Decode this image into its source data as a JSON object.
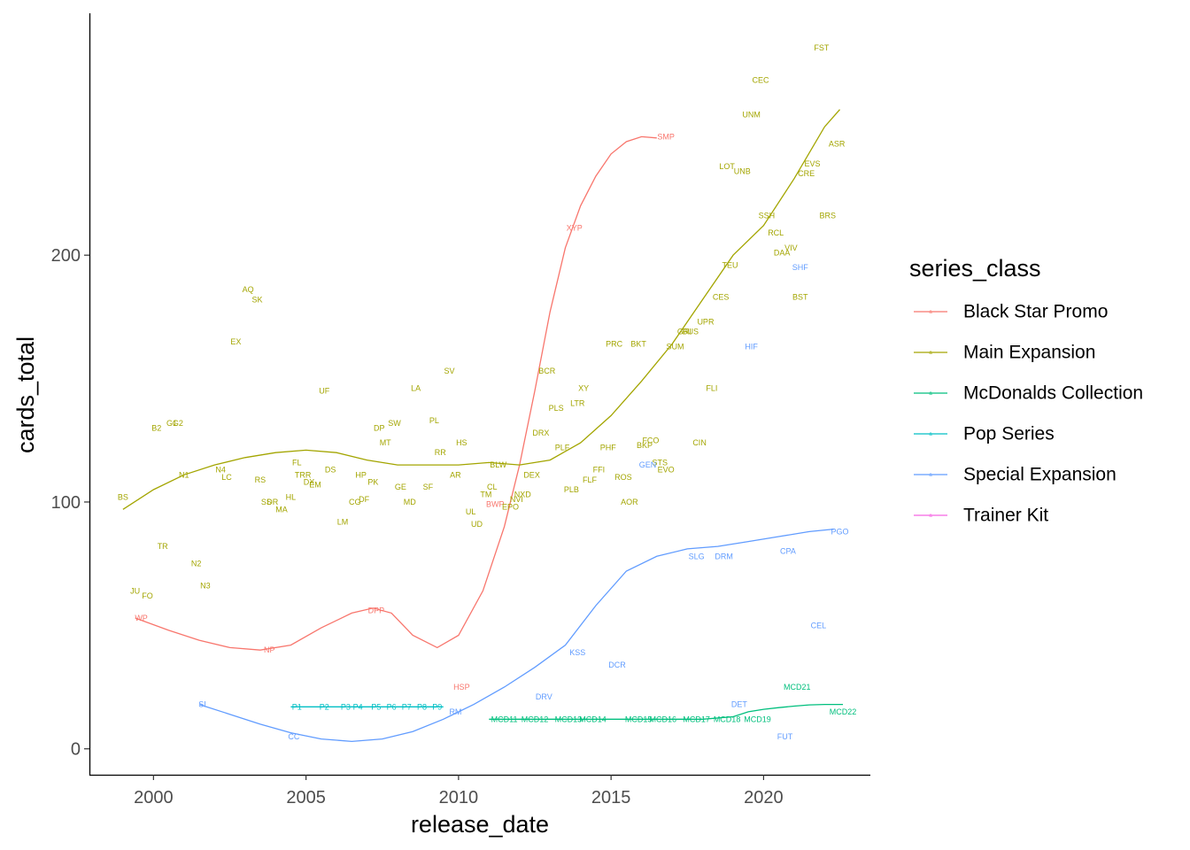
{
  "chart_data": {
    "type": "scatter",
    "xlabel": "release_date",
    "ylabel": "cards_total",
    "xlim": [
      1997.9,
      2023.5
    ],
    "ylim": [
      -10.5,
      298
    ],
    "xticks": [
      2000,
      2005,
      2010,
      2015,
      2020
    ],
    "yticks": [
      0,
      100,
      200
    ],
    "grid": false,
    "legend": {
      "title": "series_class",
      "position": "right"
    },
    "series": [
      {
        "name": "Black Star Promo",
        "color": "#F8766D",
        "points": [
          {
            "label": "WP",
            "x": 1999.6,
            "y": 53
          },
          {
            "label": "NP",
            "x": 2003.8,
            "y": 40
          },
          {
            "label": "DPP",
            "x": 2007.3,
            "y": 56
          },
          {
            "label": "HSP",
            "x": 2010.1,
            "y": 25
          },
          {
            "label": "BWP",
            "x": 2011.2,
            "y": 99
          },
          {
            "label": "XYP",
            "x": 2013.8,
            "y": 211
          },
          {
            "label": "SMP",
            "x": 2016.8,
            "y": 248
          }
        ],
        "trend": [
          [
            1999.4,
            53
          ],
          [
            2000.5,
            48
          ],
          [
            2001.5,
            44
          ],
          [
            2002.5,
            41
          ],
          [
            2003.5,
            40
          ],
          [
            2004.5,
            42
          ],
          [
            2005.5,
            49
          ],
          [
            2006.5,
            55
          ],
          [
            2007.2,
            57
          ],
          [
            2007.8,
            55
          ],
          [
            2008.5,
            46
          ],
          [
            2009.3,
            41
          ],
          [
            2010,
            46
          ],
          [
            2010.8,
            64
          ],
          [
            2011.5,
            90
          ],
          [
            2012,
            115
          ],
          [
            2012.5,
            145
          ],
          [
            2013,
            177
          ],
          [
            2013.5,
            203
          ],
          [
            2014,
            220
          ],
          [
            2014.5,
            232
          ],
          [
            2015,
            241
          ],
          [
            2015.5,
            246
          ],
          [
            2016,
            248
          ],
          [
            2016.5,
            247.5
          ]
        ]
      },
      {
        "name": "Main Expansion",
        "color": "#A3A500",
        "points": [
          {
            "label": "BS",
            "x": 1999.0,
            "y": 102
          },
          {
            "label": "JU",
            "x": 1999.4,
            "y": 64
          },
          {
            "label": "FO",
            "x": 1999.8,
            "y": 62
          },
          {
            "label": "B2",
            "x": 2000.1,
            "y": 130
          },
          {
            "label": "TR",
            "x": 2000.3,
            "y": 82
          },
          {
            "label": "G1",
            "x": 2000.6,
            "y": 132
          },
          {
            "label": "G2",
            "x": 2000.8,
            "y": 132
          },
          {
            "label": "N1",
            "x": 2001.0,
            "y": 111
          },
          {
            "label": "N2",
            "x": 2001.4,
            "y": 75
          },
          {
            "label": "N3",
            "x": 2001.7,
            "y": 66
          },
          {
            "label": "N4",
            "x": 2002.2,
            "y": 113
          },
          {
            "label": "LC",
            "x": 2002.4,
            "y": 110
          },
          {
            "label": "EX",
            "x": 2002.7,
            "y": 165
          },
          {
            "label": "AQ",
            "x": 2003.1,
            "y": 186
          },
          {
            "label": "SK",
            "x": 2003.4,
            "y": 182
          },
          {
            "label": "RS",
            "x": 2003.5,
            "y": 109
          },
          {
            "label": "SS",
            "x": 2003.7,
            "y": 100
          },
          {
            "label": "DR",
            "x": 2003.9,
            "y": 100
          },
          {
            "label": "MA",
            "x": 2004.2,
            "y": 97
          },
          {
            "label": "HL",
            "x": 2004.5,
            "y": 102
          },
          {
            "label": "FL",
            "x": 2004.7,
            "y": 116
          },
          {
            "label": "TRR",
            "x": 2004.9,
            "y": 111
          },
          {
            "label": "DX",
            "x": 2005.1,
            "y": 108
          },
          {
            "label": "EM",
            "x": 2005.3,
            "y": 107
          },
          {
            "label": "UF",
            "x": 2005.6,
            "y": 145
          },
          {
            "label": "DS",
            "x": 2005.8,
            "y": 113
          },
          {
            "label": "LM",
            "x": 2006.2,
            "y": 92
          },
          {
            "label": "CG",
            "x": 2006.6,
            "y": 100
          },
          {
            "label": "HP",
            "x": 2006.8,
            "y": 111
          },
          {
            "label": "DF",
            "x": 2006.9,
            "y": 101
          },
          {
            "label": "PK",
            "x": 2007.2,
            "y": 108
          },
          {
            "label": "DP",
            "x": 2007.4,
            "y": 130
          },
          {
            "label": "MT",
            "x": 2007.6,
            "y": 124
          },
          {
            "label": "SW",
            "x": 2007.9,
            "y": 132
          },
          {
            "label": "GE",
            "x": 2008.1,
            "y": 106
          },
          {
            "label": "MD",
            "x": 2008.4,
            "y": 100
          },
          {
            "label": "LA",
            "x": 2008.6,
            "y": 146
          },
          {
            "label": "SF",
            "x": 2009.0,
            "y": 106
          },
          {
            "label": "PL",
            "x": 2009.2,
            "y": 133
          },
          {
            "label": "RR",
            "x": 2009.4,
            "y": 120
          },
          {
            "label": "SV",
            "x": 2009.7,
            "y": 153
          },
          {
            "label": "AR",
            "x": 2009.9,
            "y": 111
          },
          {
            "label": "HS",
            "x": 2010.1,
            "y": 124
          },
          {
            "label": "UL",
            "x": 2010.4,
            "y": 96
          },
          {
            "label": "UD",
            "x": 2010.6,
            "y": 91
          },
          {
            "label": "TM",
            "x": 2010.9,
            "y": 103
          },
          {
            "label": "CL",
            "x": 2011.1,
            "y": 106
          },
          {
            "label": "BLW",
            "x": 2011.3,
            "y": 115
          },
          {
            "label": "EPO",
            "x": 2011.7,
            "y": 98
          },
          {
            "label": "NVI",
            "x": 2011.9,
            "y": 101
          },
          {
            "label": "NXD",
            "x": 2012.1,
            "y": 103
          },
          {
            "label": "DEX",
            "x": 2012.4,
            "y": 111
          },
          {
            "label": "DRX",
            "x": 2012.7,
            "y": 128
          },
          {
            "label": "BCR",
            "x": 2012.9,
            "y": 153
          },
          {
            "label": "PLS",
            "x": 2013.2,
            "y": 138
          },
          {
            "label": "PLF",
            "x": 2013.4,
            "y": 122
          },
          {
            "label": "PLB",
            "x": 2013.7,
            "y": 105
          },
          {
            "label": "LTR",
            "x": 2013.9,
            "y": 140
          },
          {
            "label": "XY",
            "x": 2014.1,
            "y": 146
          },
          {
            "label": "FLF",
            "x": 2014.3,
            "y": 109
          },
          {
            "label": "FFI",
            "x": 2014.6,
            "y": 113
          },
          {
            "label": "PHF",
            "x": 2014.9,
            "y": 122
          },
          {
            "label": "PRC",
            "x": 2015.1,
            "y": 164
          },
          {
            "label": "ROS",
            "x": 2015.4,
            "y": 110
          },
          {
            "label": "AOR",
            "x": 2015.6,
            "y": 100
          },
          {
            "label": "BKT",
            "x": 2015.9,
            "y": 164
          },
          {
            "label": "BKP",
            "x": 2016.1,
            "y": 123
          },
          {
            "label": "FCO",
            "x": 2016.3,
            "y": 125
          },
          {
            "label": "STS",
            "x": 2016.6,
            "y": 116
          },
          {
            "label": "EVO",
            "x": 2016.8,
            "y": 113
          },
          {
            "label": "SUM",
            "x": 2017.1,
            "y": 163
          },
          {
            "label": "GRI",
            "x": 2017.4,
            "y": 169
          },
          {
            "label": "BUS",
            "x": 2017.6,
            "y": 169
          },
          {
            "label": "CIN",
            "x": 2017.9,
            "y": 124
          },
          {
            "label": "UPR",
            "x": 2018.1,
            "y": 173
          },
          {
            "label": "FLI",
            "x": 2018.3,
            "y": 146
          },
          {
            "label": "CES",
            "x": 2018.6,
            "y": 183
          },
          {
            "label": "LOT",
            "x": 2018.8,
            "y": 236
          },
          {
            "label": "TEU",
            "x": 2018.9,
            "y": 196
          },
          {
            "label": "UNB",
            "x": 2019.3,
            "y": 234
          },
          {
            "label": "UNM",
            "x": 2019.6,
            "y": 257
          },
          {
            "label": "CEC",
            "x": 2019.9,
            "y": 271
          },
          {
            "label": "SSH",
            "x": 2020.1,
            "y": 216
          },
          {
            "label": "RCL",
            "x": 2020.4,
            "y": 209
          },
          {
            "label": "DAA",
            "x": 2020.6,
            "y": 201
          },
          {
            "label": "VIV",
            "x": 2020.9,
            "y": 203
          },
          {
            "label": "BST",
            "x": 2021.2,
            "y": 183
          },
          {
            "label": "CRE",
            "x": 2021.4,
            "y": 233
          },
          {
            "label": "EVS",
            "x": 2021.6,
            "y": 237
          },
          {
            "label": "FST",
            "x": 2021.9,
            "y": 284
          },
          {
            "label": "BRS",
            "x": 2022.1,
            "y": 216
          },
          {
            "label": "ASR",
            "x": 2022.4,
            "y": 245
          }
        ],
        "trend": [
          [
            1999,
            97
          ],
          [
            2000,
            105
          ],
          [
            2001,
            111
          ],
          [
            2002,
            115
          ],
          [
            2003,
            118
          ],
          [
            2004,
            120
          ],
          [
            2005,
            121
          ],
          [
            2006,
            120
          ],
          [
            2007,
            117
          ],
          [
            2008,
            115
          ],
          [
            2009,
            115
          ],
          [
            2010,
            115
          ],
          [
            2011,
            116
          ],
          [
            2012,
            115
          ],
          [
            2013,
            117
          ],
          [
            2014,
            124
          ],
          [
            2015,
            135
          ],
          [
            2016,
            149
          ],
          [
            2017,
            164
          ],
          [
            2018,
            182
          ],
          [
            2019,
            200
          ],
          [
            2020,
            212
          ],
          [
            2021,
            231
          ],
          [
            2022,
            252
          ],
          [
            2022.5,
            259
          ]
        ]
      },
      {
        "name": "McDonalds Collection",
        "color": "#00BF7D",
        "points": [
          {
            "label": "MCD11",
            "x": 2011.5,
            "y": 12
          },
          {
            "label": "MCD12",
            "x": 2012.5,
            "y": 12
          },
          {
            "label": "MCD13",
            "x": 2013.6,
            "y": 12
          },
          {
            "label": "MCD14",
            "x": 2014.4,
            "y": 12
          },
          {
            "label": "MCD15",
            "x": 2015.9,
            "y": 12
          },
          {
            "label": "MCD16",
            "x": 2016.7,
            "y": 12
          },
          {
            "label": "MCD17",
            "x": 2017.8,
            "y": 12
          },
          {
            "label": "MCD18",
            "x": 2018.8,
            "y": 12
          },
          {
            "label": "MCD19",
            "x": 2019.8,
            "y": 12
          },
          {
            "label": "MCD21",
            "x": 2021.1,
            "y": 25
          },
          {
            "label": "MCD22",
            "x": 2022.6,
            "y": 15
          }
        ],
        "trend": [
          [
            2011,
            12
          ],
          [
            2012,
            12
          ],
          [
            2013,
            12
          ],
          [
            2014,
            12
          ],
          [
            2015,
            12
          ],
          [
            2016,
            12
          ],
          [
            2017,
            12
          ],
          [
            2018,
            12
          ],
          [
            2019,
            13
          ],
          [
            2019.5,
            15
          ],
          [
            2020,
            16
          ],
          [
            2020.5,
            16.7
          ],
          [
            2021,
            17.3
          ],
          [
            2021.5,
            17.8
          ],
          [
            2022,
            18
          ],
          [
            2022.6,
            18
          ]
        ]
      },
      {
        "name": "Pop Series",
        "color": "#00BFC4",
        "points": [
          {
            "label": "P1",
            "x": 2004.7,
            "y": 17
          },
          {
            "label": "P2",
            "x": 2005.6,
            "y": 17
          },
          {
            "label": "P3",
            "x": 2006.3,
            "y": 17
          },
          {
            "label": "P4",
            "x": 2006.7,
            "y": 17
          },
          {
            "label": "P5",
            "x": 2007.3,
            "y": 17
          },
          {
            "label": "P6",
            "x": 2007.8,
            "y": 17
          },
          {
            "label": "P7",
            "x": 2008.3,
            "y": 17
          },
          {
            "label": "P8",
            "x": 2008.8,
            "y": 17
          },
          {
            "label": "P9",
            "x": 2009.3,
            "y": 17
          }
        ],
        "trend": [
          [
            2004.5,
            17
          ],
          [
            2009.5,
            17
          ]
        ]
      },
      {
        "name": "Special Expansion",
        "color": "#619CFF",
        "points": [
          {
            "label": "SI",
            "x": 2001.6,
            "y": 18
          },
          {
            "label": "CC",
            "x": 2004.6,
            "y": 5
          },
          {
            "label": "RM",
            "x": 2009.9,
            "y": 15
          },
          {
            "label": "DRV",
            "x": 2012.8,
            "y": 21
          },
          {
            "label": "KSS",
            "x": 2013.9,
            "y": 39
          },
          {
            "label": "DCR",
            "x": 2015.2,
            "y": 34
          },
          {
            "label": "GEN",
            "x": 2016.2,
            "y": 115
          },
          {
            "label": "SLG",
            "x": 2017.8,
            "y": 78
          },
          {
            "label": "DRM",
            "x": 2018.7,
            "y": 78
          },
          {
            "label": "DET",
            "x": 2019.2,
            "y": 18
          },
          {
            "label": "SHF",
            "x": 2021.2,
            "y": 195
          },
          {
            "label": "HIF",
            "x": 2019.6,
            "y": 163
          },
          {
            "label": "CPA",
            "x": 2020.8,
            "y": 80
          },
          {
            "label": "FUT",
            "x": 2020.7,
            "y": 5
          },
          {
            "label": "CEL",
            "x": 2021.8,
            "y": 50
          },
          {
            "label": "PGO",
            "x": 2022.5,
            "y": 88
          }
        ],
        "trend": [
          [
            2001.5,
            18
          ],
          [
            2002.5,
            14
          ],
          [
            2003.5,
            10
          ],
          [
            2004.5,
            6.5
          ],
          [
            2005.5,
            4
          ],
          [
            2006.5,
            3
          ],
          [
            2007.5,
            4
          ],
          [
            2008.5,
            7
          ],
          [
            2009.5,
            12
          ],
          [
            2010.5,
            18
          ],
          [
            2011.5,
            25
          ],
          [
            2012.5,
            33
          ],
          [
            2013.5,
            42
          ],
          [
            2014.5,
            58
          ],
          [
            2015.5,
            72
          ],
          [
            2016.5,
            78
          ],
          [
            2017.5,
            81
          ],
          [
            2018.5,
            82
          ],
          [
            2019.5,
            84
          ],
          [
            2020.5,
            86
          ],
          [
            2021.5,
            88
          ],
          [
            2022.3,
            89
          ]
        ]
      },
      {
        "name": "Trainer Kit",
        "color": "#F564E3",
        "points": [],
        "trend": []
      }
    ]
  }
}
